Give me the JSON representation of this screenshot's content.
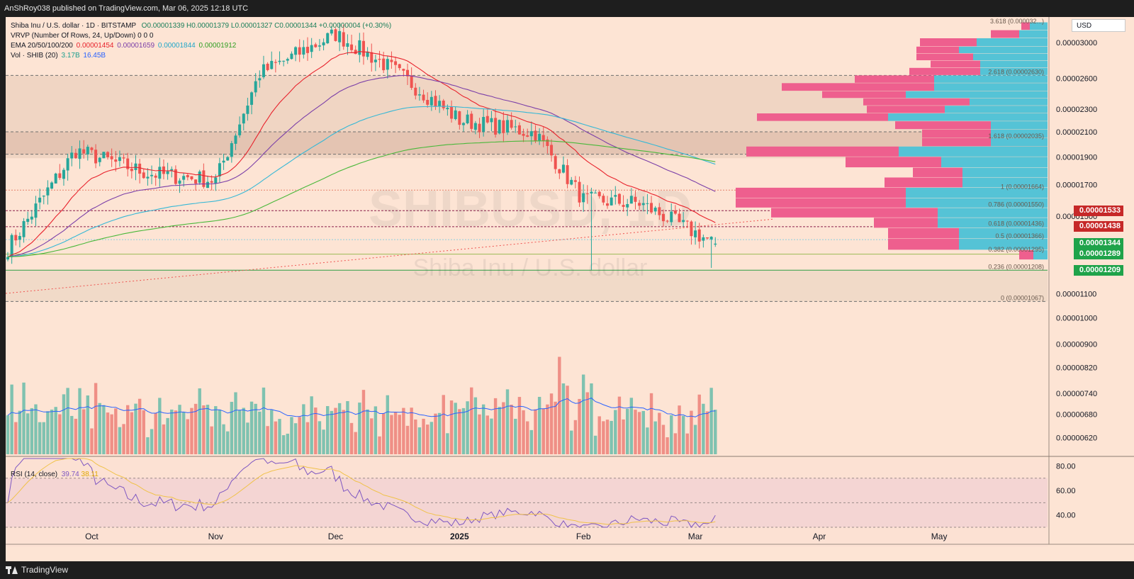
{
  "header": {
    "publisher_text": "AnShRoy038 published on TradingView.com, Mar 06, 2025 12:18 UTC"
  },
  "footer": {
    "brand": "TradingView"
  },
  "legend": {
    "title": "Shiba Inu / U.S. dollar · 1D · BITSTAMP",
    "ohlc": "O0.00001339 H0.00001379 L0.00001327 C0.00001344 +0.00000004 (+0.30%)",
    "vrvp": "VRVP (Number Of Rows, 24, Up/Down)  0  0  0",
    "ema_label": "EMA 20/50/100/200",
    "ema_values": [
      "0.00001454",
      "0.00001659",
      "0.00001844",
      "0.00001912"
    ],
    "vol_label": "Vol · SHIB (20)",
    "vol_values": [
      "3.17B",
      "16.45B"
    ],
    "rsi_label": "RSI (14, close)",
    "rsi_values": [
      "39.74",
      "38.11"
    ]
  },
  "watermark": {
    "symbol": "SHIBUSD, 1D",
    "name": "Shiba Inu / U.S. dollar"
  },
  "currency_button": "USD",
  "colors": {
    "bg": "#fbe1d0",
    "up": "#26a69a",
    "down": "#ef5350",
    "ema20": "#e8222c",
    "ema50": "#7b3fa8",
    "ema100": "#36b8d6",
    "ema200": "#49b83a",
    "vol_ma": "#2962ff",
    "rsi": "#7e57c2",
    "rsi_ma": "#f0c24a",
    "vp_up": "#55c3d6",
    "vp_down": "#ee5f8e"
  },
  "chart_data": {
    "type": "candlestick",
    "title": "Shiba Inu / U.S. dollar · 1D · BITSTAMP",
    "y_scale": "log",
    "ylim": [
      5.8e-06,
      3.32e-05
    ],
    "x_ticks": [
      "Oct",
      "Nov",
      "Dec",
      "2025",
      "Feb",
      "Mar",
      "Apr",
      "May"
    ],
    "y_ticks": [
      "0.00003000",
      "0.00002600",
      "0.00002300",
      "0.00002100",
      "0.00001900",
      "0.00001700",
      "0.00001500",
      "0.00001100",
      "0.00001000",
      "0.00000900",
      "0.00000820",
      "0.00000740",
      "0.00000680",
      "0.00000620"
    ],
    "price_tags": [
      {
        "value": "0.00001533",
        "color": "#c62828"
      },
      {
        "value": "0.00001438",
        "color": "#c62828"
      },
      {
        "value": "0.00001344",
        "color": "#1fa34a"
      },
      {
        "value": "0.00001289",
        "color": "#1fa34a"
      },
      {
        "value": "0.00001209",
        "color": "#1fa34a"
      }
    ],
    "fib_levels": [
      {
        "label": "3.618 (0.000032...)",
        "value": 3.22e-05
      },
      {
        "label": "2.618 (0.00002630)",
        "value": 2.63e-05
      },
      {
        "label": "1.618 (0.00002035)",
        "value": 2.035e-05
      },
      {
        "label": "1 (0.00001664)",
        "value": 1.664e-05
      },
      {
        "label": "0.786 (0.00001550)",
        "value": 1.55e-05
      },
      {
        "label": "0.618 (0.00001436)",
        "value": 1.436e-05
      },
      {
        "label": "0.5 (0.00001366)",
        "value": 1.366e-05
      },
      {
        "label": "0.382 (0.00001295)",
        "value": 1.295e-05
      },
      {
        "label": "0.236 (0.00001208)",
        "value": 1.208e-05
      },
      {
        "label": "0 (0.00001067)",
        "value": 1.067e-05
      }
    ],
    "monthly_closes": [
      {
        "date": "2024-09-10",
        "close": 1.32e-05
      },
      {
        "date": "2024-09-27",
        "close": 1.95e-05
      },
      {
        "date": "2024-10-15",
        "close": 1.78e-05
      },
      {
        "date": "2024-11-01",
        "close": 1.73e-05
      },
      {
        "date": "2024-11-12",
        "close": 2.65e-05
      },
      {
        "date": "2024-12-01",
        "close": 3.1e-05
      },
      {
        "date": "2024-12-15",
        "close": 2.7e-05
      },
      {
        "date": "2025-01-01",
        "close": 2.2e-05
      },
      {
        "date": "2025-01-20",
        "close": 2.09e-05
      },
      {
        "date": "2025-02-01",
        "close": 1.6e-05
      },
      {
        "date": "2025-02-15",
        "close": 1.58e-05
      },
      {
        "date": "2025-03-06",
        "close": 1.344e-05
      }
    ],
    "rsi_ticks": [
      "80.00",
      "60.00",
      "40.00"
    ],
    "rsi_latest": 39.74,
    "volume_latest": "3.17B"
  }
}
